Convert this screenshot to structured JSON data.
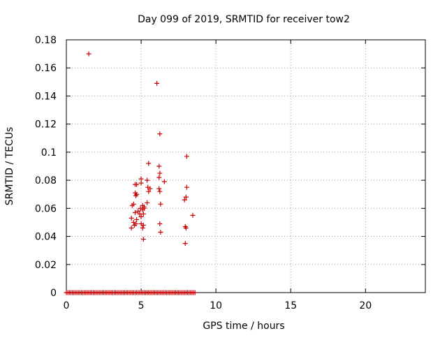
{
  "chart_data": {
    "type": "scatter",
    "title": "Day 099 of 2019, SRMTID for receiver tow2",
    "xlabel": "GPS time / hours",
    "ylabel": "SRMTID / TECUs",
    "xlim": [
      0,
      24
    ],
    "ylim": [
      0,
      0.18
    ],
    "xticks": [
      0,
      5,
      10,
      15,
      20
    ],
    "yticks": [
      0,
      0.02,
      0.04,
      0.06,
      0.08,
      0.1,
      0.12,
      0.14,
      0.16,
      0.18
    ],
    "xtick_labels": [
      "0",
      "5",
      "10",
      "15",
      "20"
    ],
    "ytick_labels": [
      "0",
      "0.02",
      "0.04",
      "0.06",
      "0.08",
      "0.1",
      "0.12",
      "0.14",
      "0.16",
      "0.18"
    ],
    "grid": true,
    "marker": "+",
    "color": "#cc0000",
    "points": [
      [
        1.5,
        0.17
      ],
      [
        6.05,
        0.149
      ],
      [
        6.25,
        0.113
      ],
      [
        8.05,
        0.097
      ],
      [
        5.5,
        0.092
      ],
      [
        6.2,
        0.09
      ],
      [
        6.25,
        0.085
      ],
      [
        6.2,
        0.082
      ],
      [
        6.55,
        0.079
      ],
      [
        5.0,
        0.081
      ],
      [
        5.4,
        0.08
      ],
      [
        5.0,
        0.078
      ],
      [
        4.6,
        0.077
      ],
      [
        4.7,
        0.077
      ],
      [
        8.05,
        0.075
      ],
      [
        5.45,
        0.075
      ],
      [
        5.6,
        0.074
      ],
      [
        6.2,
        0.074
      ],
      [
        5.5,
        0.072
      ],
      [
        6.25,
        0.072
      ],
      [
        4.6,
        0.071
      ],
      [
        4.7,
        0.07
      ],
      [
        4.65,
        0.069
      ],
      [
        8.0,
        0.068
      ],
      [
        7.9,
        0.066
      ],
      [
        5.4,
        0.064
      ],
      [
        6.3,
        0.063
      ],
      [
        4.5,
        0.063
      ],
      [
        4.4,
        0.062
      ],
      [
        5.1,
        0.062
      ],
      [
        5.2,
        0.061
      ],
      [
        4.95,
        0.06
      ],
      [
        5.1,
        0.059
      ],
      [
        5.2,
        0.06
      ],
      [
        4.8,
        0.058
      ],
      [
        4.6,
        0.057
      ],
      [
        4.9,
        0.056
      ],
      [
        5.15,
        0.056
      ],
      [
        8.45,
        0.055
      ],
      [
        5.0,
        0.054
      ],
      [
        4.35,
        0.053
      ],
      [
        4.7,
        0.052
      ],
      [
        4.5,
        0.05
      ],
      [
        4.65,
        0.049
      ],
      [
        6.25,
        0.049
      ],
      [
        5.0,
        0.049
      ],
      [
        5.15,
        0.048
      ],
      [
        4.55,
        0.048
      ],
      [
        7.95,
        0.047
      ],
      [
        8.0,
        0.046
      ],
      [
        4.35,
        0.046
      ],
      [
        5.1,
        0.046
      ],
      [
        6.3,
        0.043
      ],
      [
        5.15,
        0.038
      ],
      [
        7.95,
        0.035
      ]
    ],
    "zero_band_x": [
      0,
      8.6
    ]
  }
}
